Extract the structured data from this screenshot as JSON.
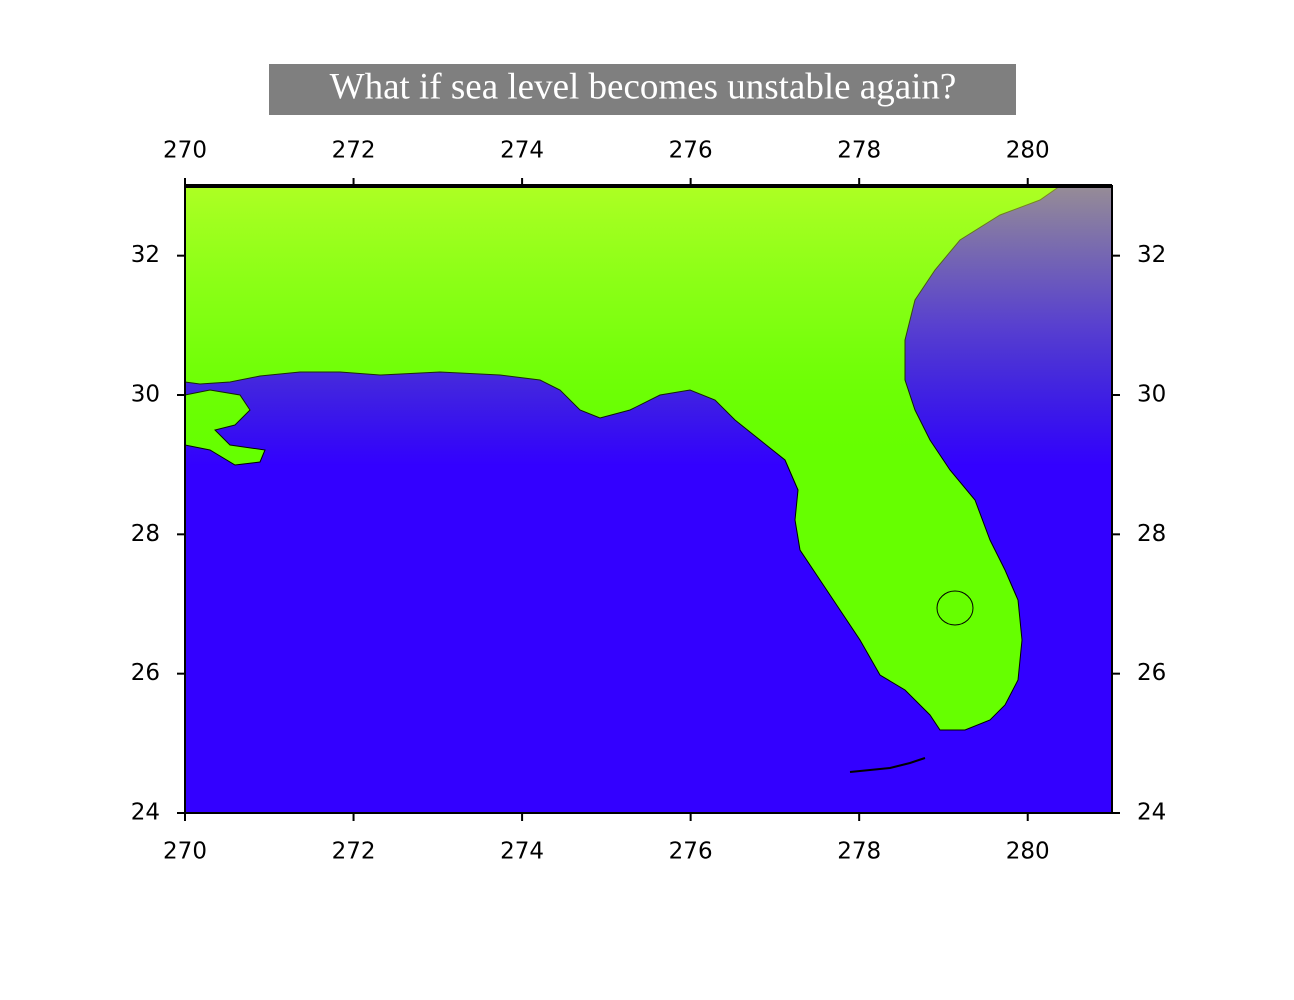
{
  "map": {
    "title": "What if sea level becomes unstable again?",
    "xlim": [
      270,
      281
    ],
    "ylim": [
      24,
      33
    ],
    "xticks": [
      270,
      272,
      274,
      276,
      278,
      280
    ],
    "yticks": [
      24,
      26,
      28,
      30,
      32
    ],
    "land_color": "#66ff00",
    "ocean_color": "#3300ff"
  }
}
